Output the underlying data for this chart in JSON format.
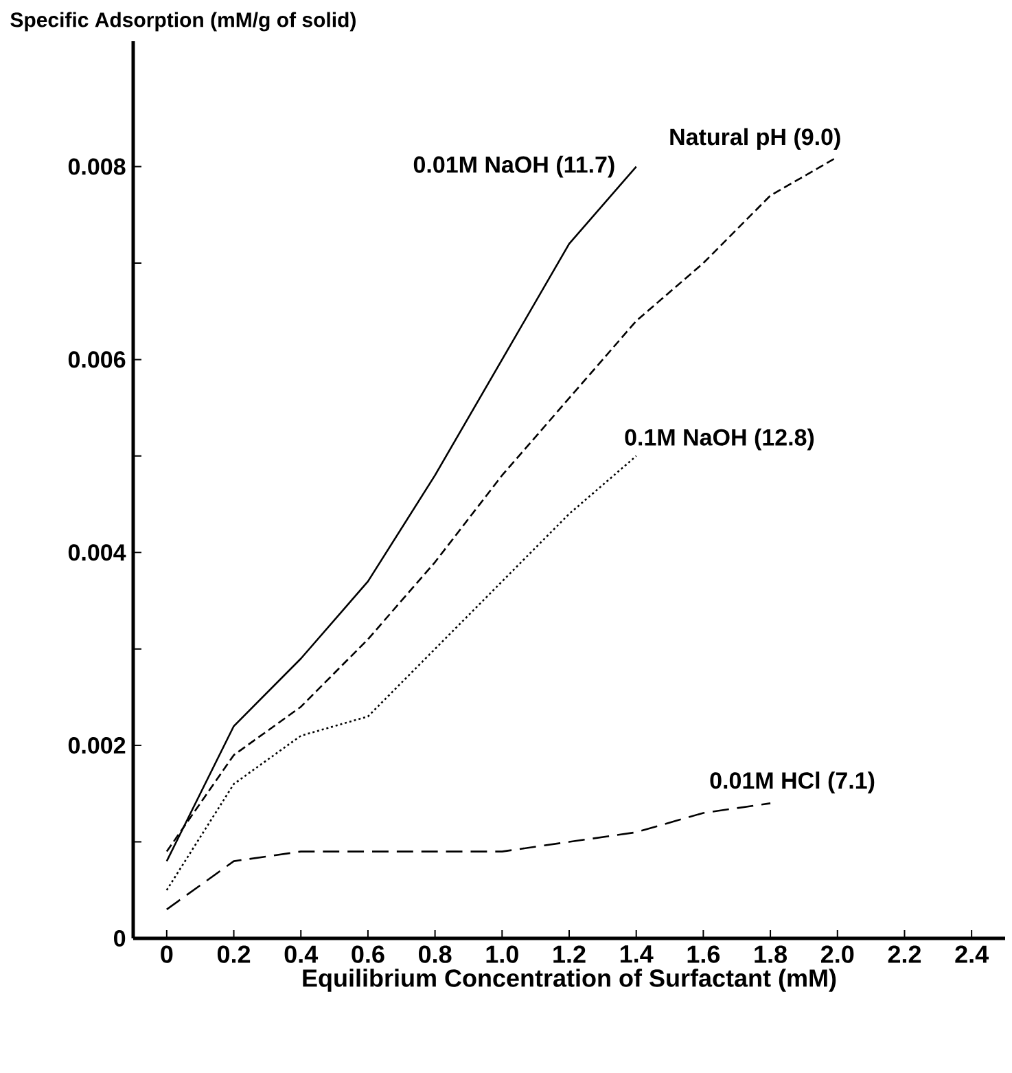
{
  "chart_data": {
    "type": "line",
    "ylabel": "Specific Adsorption (mM/g of solid)",
    "xlabel": "Equilibrium Concentration of Surfactant (mM)",
    "xlim": [
      -0.1,
      2.5
    ],
    "xticks": [
      0,
      0.2,
      0.4,
      0.6,
      0.8,
      {
        "value": 1.0,
        "label": "1.0"
      },
      1.2,
      1.4,
      1.6,
      1.8,
      {
        "value": 2.0,
        "label": "2.0"
      },
      2.2,
      2.4
    ],
    "ylim": [
      0,
      0.0093
    ],
    "yticks": [
      0,
      {
        "value": 0.001,
        "label": null
      },
      0.002,
      {
        "value": 0.003,
        "label": null
      },
      0.004,
      {
        "value": 0.005,
        "label": null
      },
      0.006,
      {
        "value": 0.007,
        "label": null
      },
      0.008
    ],
    "legend": false,
    "series": [
      {
        "name": "0.01M NaOH (11.7)",
        "color": "#000000",
        "line_style": "solid",
        "x": [
          0,
          0.2,
          0.4,
          0.6,
          0.8,
          1.0,
          1.2,
          1.4
        ],
        "values": [
          0.0008,
          0.0022,
          0.0029,
          0.0037,
          0.0048,
          0.006,
          0.0072,
          0.008
        ]
      },
      {
        "name": "Natural pH (9.0)",
        "color": "#000000",
        "line_style": "dashed",
        "x": [
          0,
          0.2,
          0.4,
          0.6,
          0.8,
          1.0,
          1.2,
          1.4,
          1.6,
          1.8,
          2.0
        ],
        "values": [
          0.0009,
          0.0019,
          0.0024,
          0.0031,
          0.0039,
          0.0048,
          0.0056,
          0.0064,
          0.007,
          0.0077,
          0.0081
        ]
      },
      {
        "name": "0.1M NaOH (12.8)",
        "color": "#000000",
        "line_style": "dotted",
        "x": [
          0,
          0.2,
          0.4,
          0.6,
          0.8,
          1.0,
          1.2,
          1.4
        ],
        "values": [
          0.0005,
          0.0016,
          0.0021,
          0.0023,
          0.003,
          0.0037,
          0.0044,
          0.005
        ]
      },
      {
        "name": "0.01M HCl (7.1)",
        "color": "#000000",
        "line_style": "dashed",
        "x": [
          0,
          0.2,
          0.4,
          0.6,
          0.8,
          1.0,
          1.2,
          1.4,
          1.6,
          1.8
        ],
        "values": [
          0.0003,
          0.0008,
          0.0009,
          0.0009,
          0.0009,
          0.0009,
          0.001,
          0.0011,
          0.0013,
          0.0014
        ]
      }
    ]
  }
}
